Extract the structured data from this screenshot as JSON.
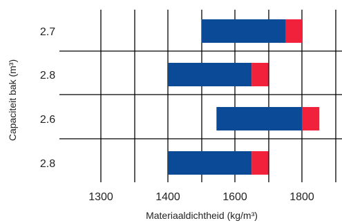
{
  "chart_data": {
    "type": "bar",
    "orientation": "horizontal",
    "stacked": true,
    "xlabel": "Materiaaldichtheid (kg/m³)",
    "ylabel": "Capaciteit bak (m³)",
    "x_ticks": [
      1300,
      1400,
      1600,
      1800
    ],
    "categories": [
      "2.7",
      "2.8",
      "2.6",
      "2.8"
    ],
    "series": [
      {
        "color": "#0a4a96",
        "ranges": [
          [
            1500,
            1752
          ],
          [
            1400,
            1650
          ],
          [
            1545,
            1800
          ],
          [
            1400,
            1650
          ]
        ]
      },
      {
        "color": "#f2213b",
        "ranges": [
          [
            1752,
            1800
          ],
          [
            1650,
            1700
          ],
          [
            1800,
            1852
          ],
          [
            1650,
            1700
          ]
        ]
      }
    ],
    "grid": true,
    "legend": "none"
  }
}
